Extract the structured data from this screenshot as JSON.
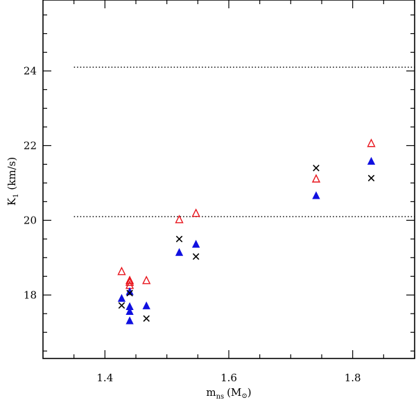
{
  "chart_data": {
    "type": "scatter",
    "title": "",
    "xlabel": {
      "main": "m",
      "sub": "ns",
      "unit": "(M",
      "sun": "⊙",
      "close": ")"
    },
    "ylabel": {
      "main": "K",
      "sub": "1",
      "unit": "(km/s)"
    },
    "xlim": [
      1.3,
      1.9
    ],
    "ylim": [
      16.3,
      25.9
    ],
    "xticks": [
      1.4,
      1.6,
      1.8
    ],
    "xtick_labels": [
      "1.4",
      "1.6",
      "1.8"
    ],
    "yticks": [
      18,
      20,
      22,
      24
    ],
    "ytick_labels": [
      "18",
      "20",
      "22",
      "24"
    ],
    "grid": false,
    "hlines": [
      {
        "y": 24.1,
        "xmin": 1.35,
        "style": "dotted"
      },
      {
        "y": 20.1,
        "xmin": 1.35,
        "style": "dotted"
      }
    ],
    "series": [
      {
        "name": "open-triangles",
        "marker": "open-triangle",
        "color": "#e8141c",
        "x": [
          1.427,
          1.44,
          1.44,
          1.44,
          1.467,
          1.52,
          1.547,
          1.741,
          1.83
        ],
        "y": [
          18.62,
          18.38,
          18.33,
          18.25,
          18.38,
          20.01,
          20.18,
          21.1,
          22.05
        ]
      },
      {
        "name": "filled-triangles",
        "marker": "filled-triangle",
        "color": "#1010e0",
        "x": [
          1.427,
          1.44,
          1.44,
          1.44,
          1.44,
          1.467,
          1.52,
          1.547,
          1.741,
          1.83
        ],
        "y": [
          17.9,
          17.68,
          17.55,
          17.3,
          18.08,
          17.7,
          19.13,
          19.35,
          20.65,
          21.57
        ]
      },
      {
        "name": "crosses",
        "marker": "cross",
        "color": "#000000",
        "x": [
          1.427,
          1.44,
          1.467,
          1.52,
          1.547,
          1.741,
          1.83
        ],
        "y": [
          17.72,
          18.05,
          17.37,
          19.5,
          19.03,
          21.4,
          21.13
        ]
      }
    ]
  }
}
